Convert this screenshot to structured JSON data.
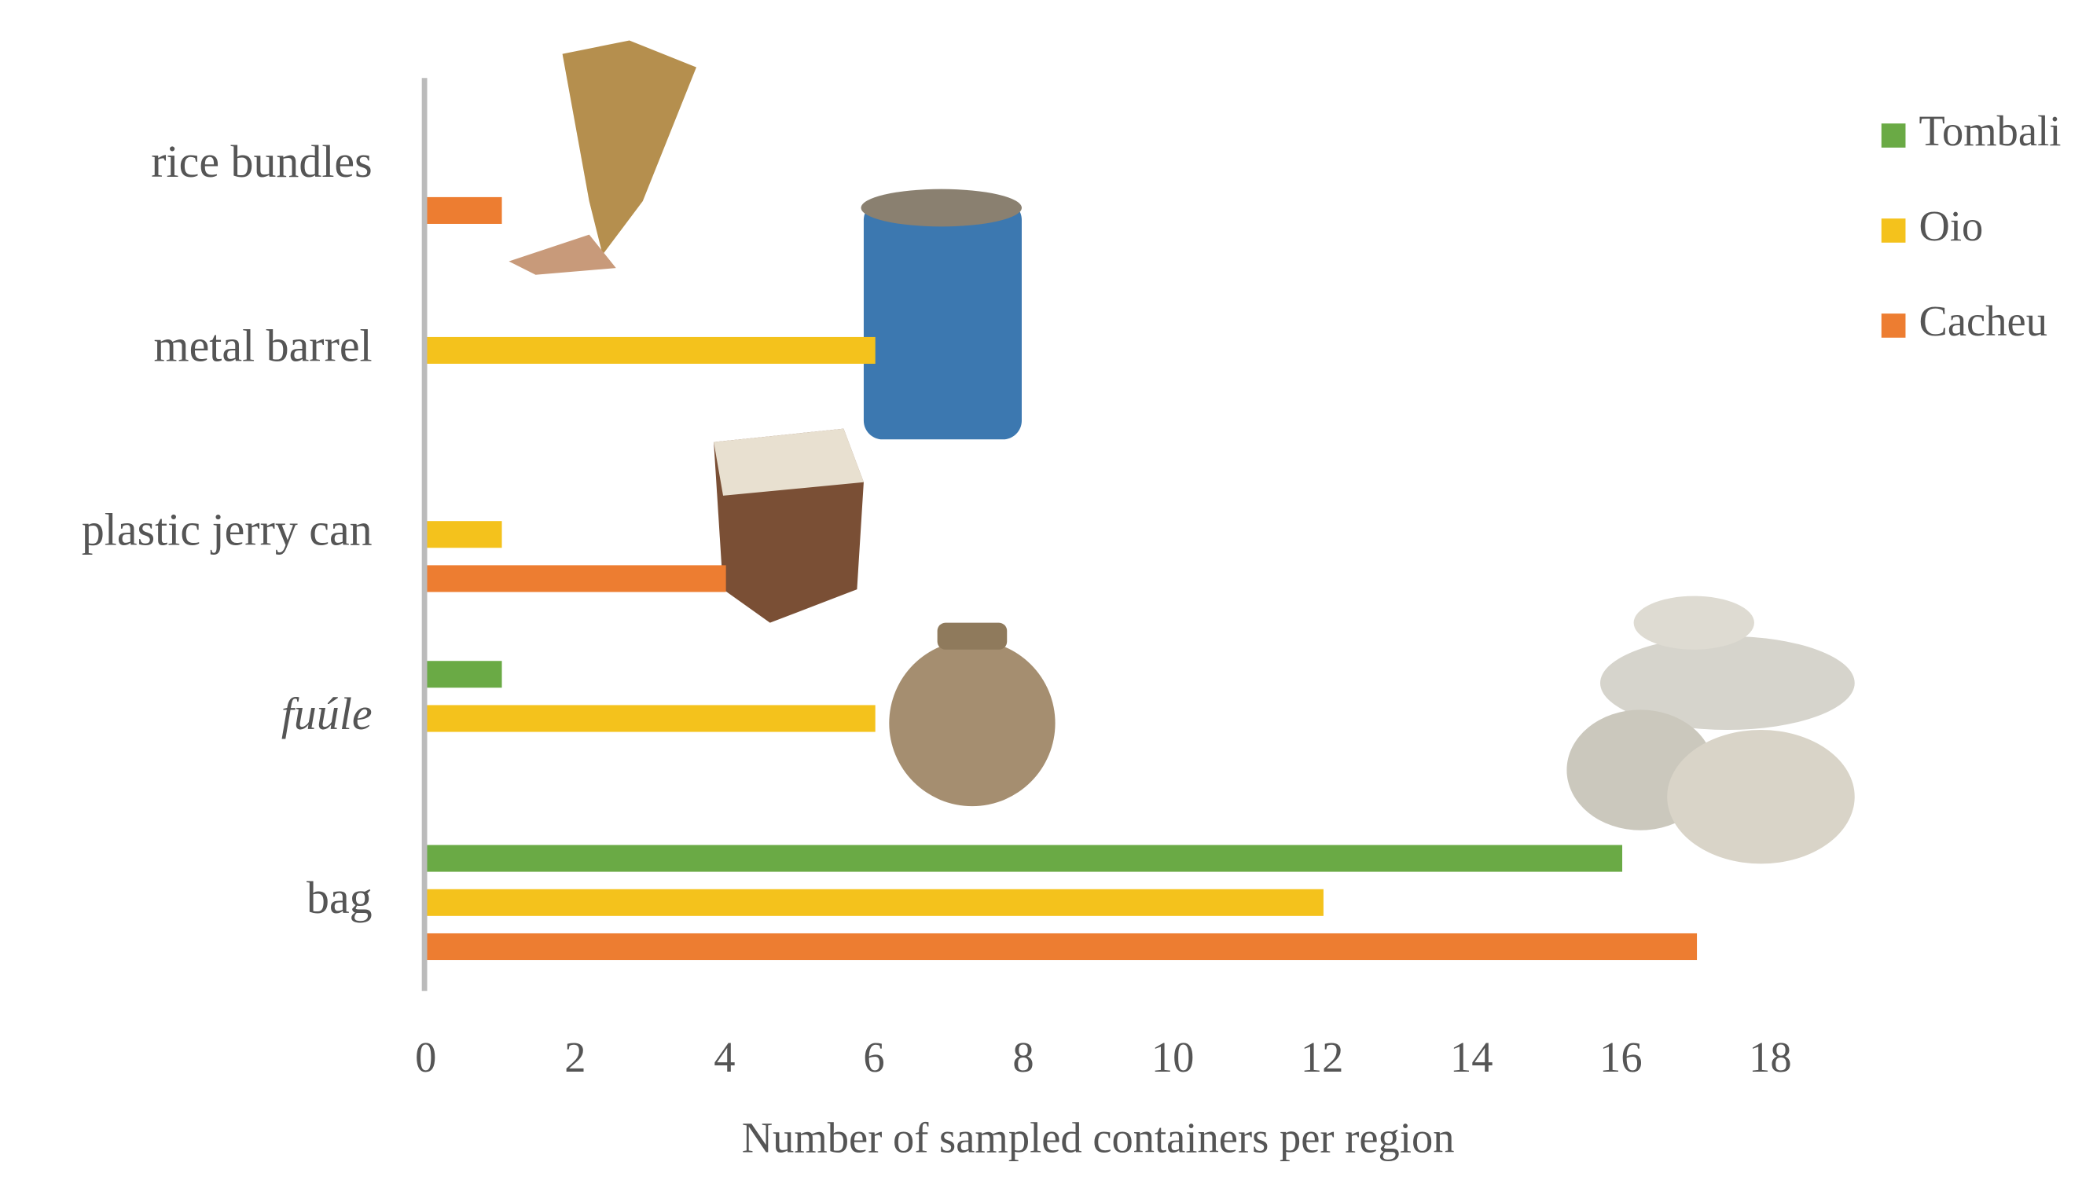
{
  "chart_data": {
    "type": "hbar",
    "categories": [
      "rice bundles",
      "metal barrel",
      "plastic jerry can",
      "fuúle",
      "bag"
    ],
    "series": [
      {
        "name": "Tombali",
        "color": "#6aaa45",
        "values": [
          0,
          0,
          0,
          1,
          16
        ]
      },
      {
        "name": "Oio",
        "color": "#f4c21c",
        "values": [
          0,
          6,
          1,
          6,
          12
        ]
      },
      {
        "name": "Cacheu",
        "color": "#ed7d31",
        "values": [
          1,
          0,
          4,
          0,
          17
        ]
      }
    ],
    "xlabel": "Number of sampled containers per region",
    "xlim": [
      0,
      19
    ],
    "xticks": [
      0,
      2,
      4,
      6,
      8,
      10,
      12,
      14,
      16,
      18
    ],
    "legend": "top-right"
  }
}
